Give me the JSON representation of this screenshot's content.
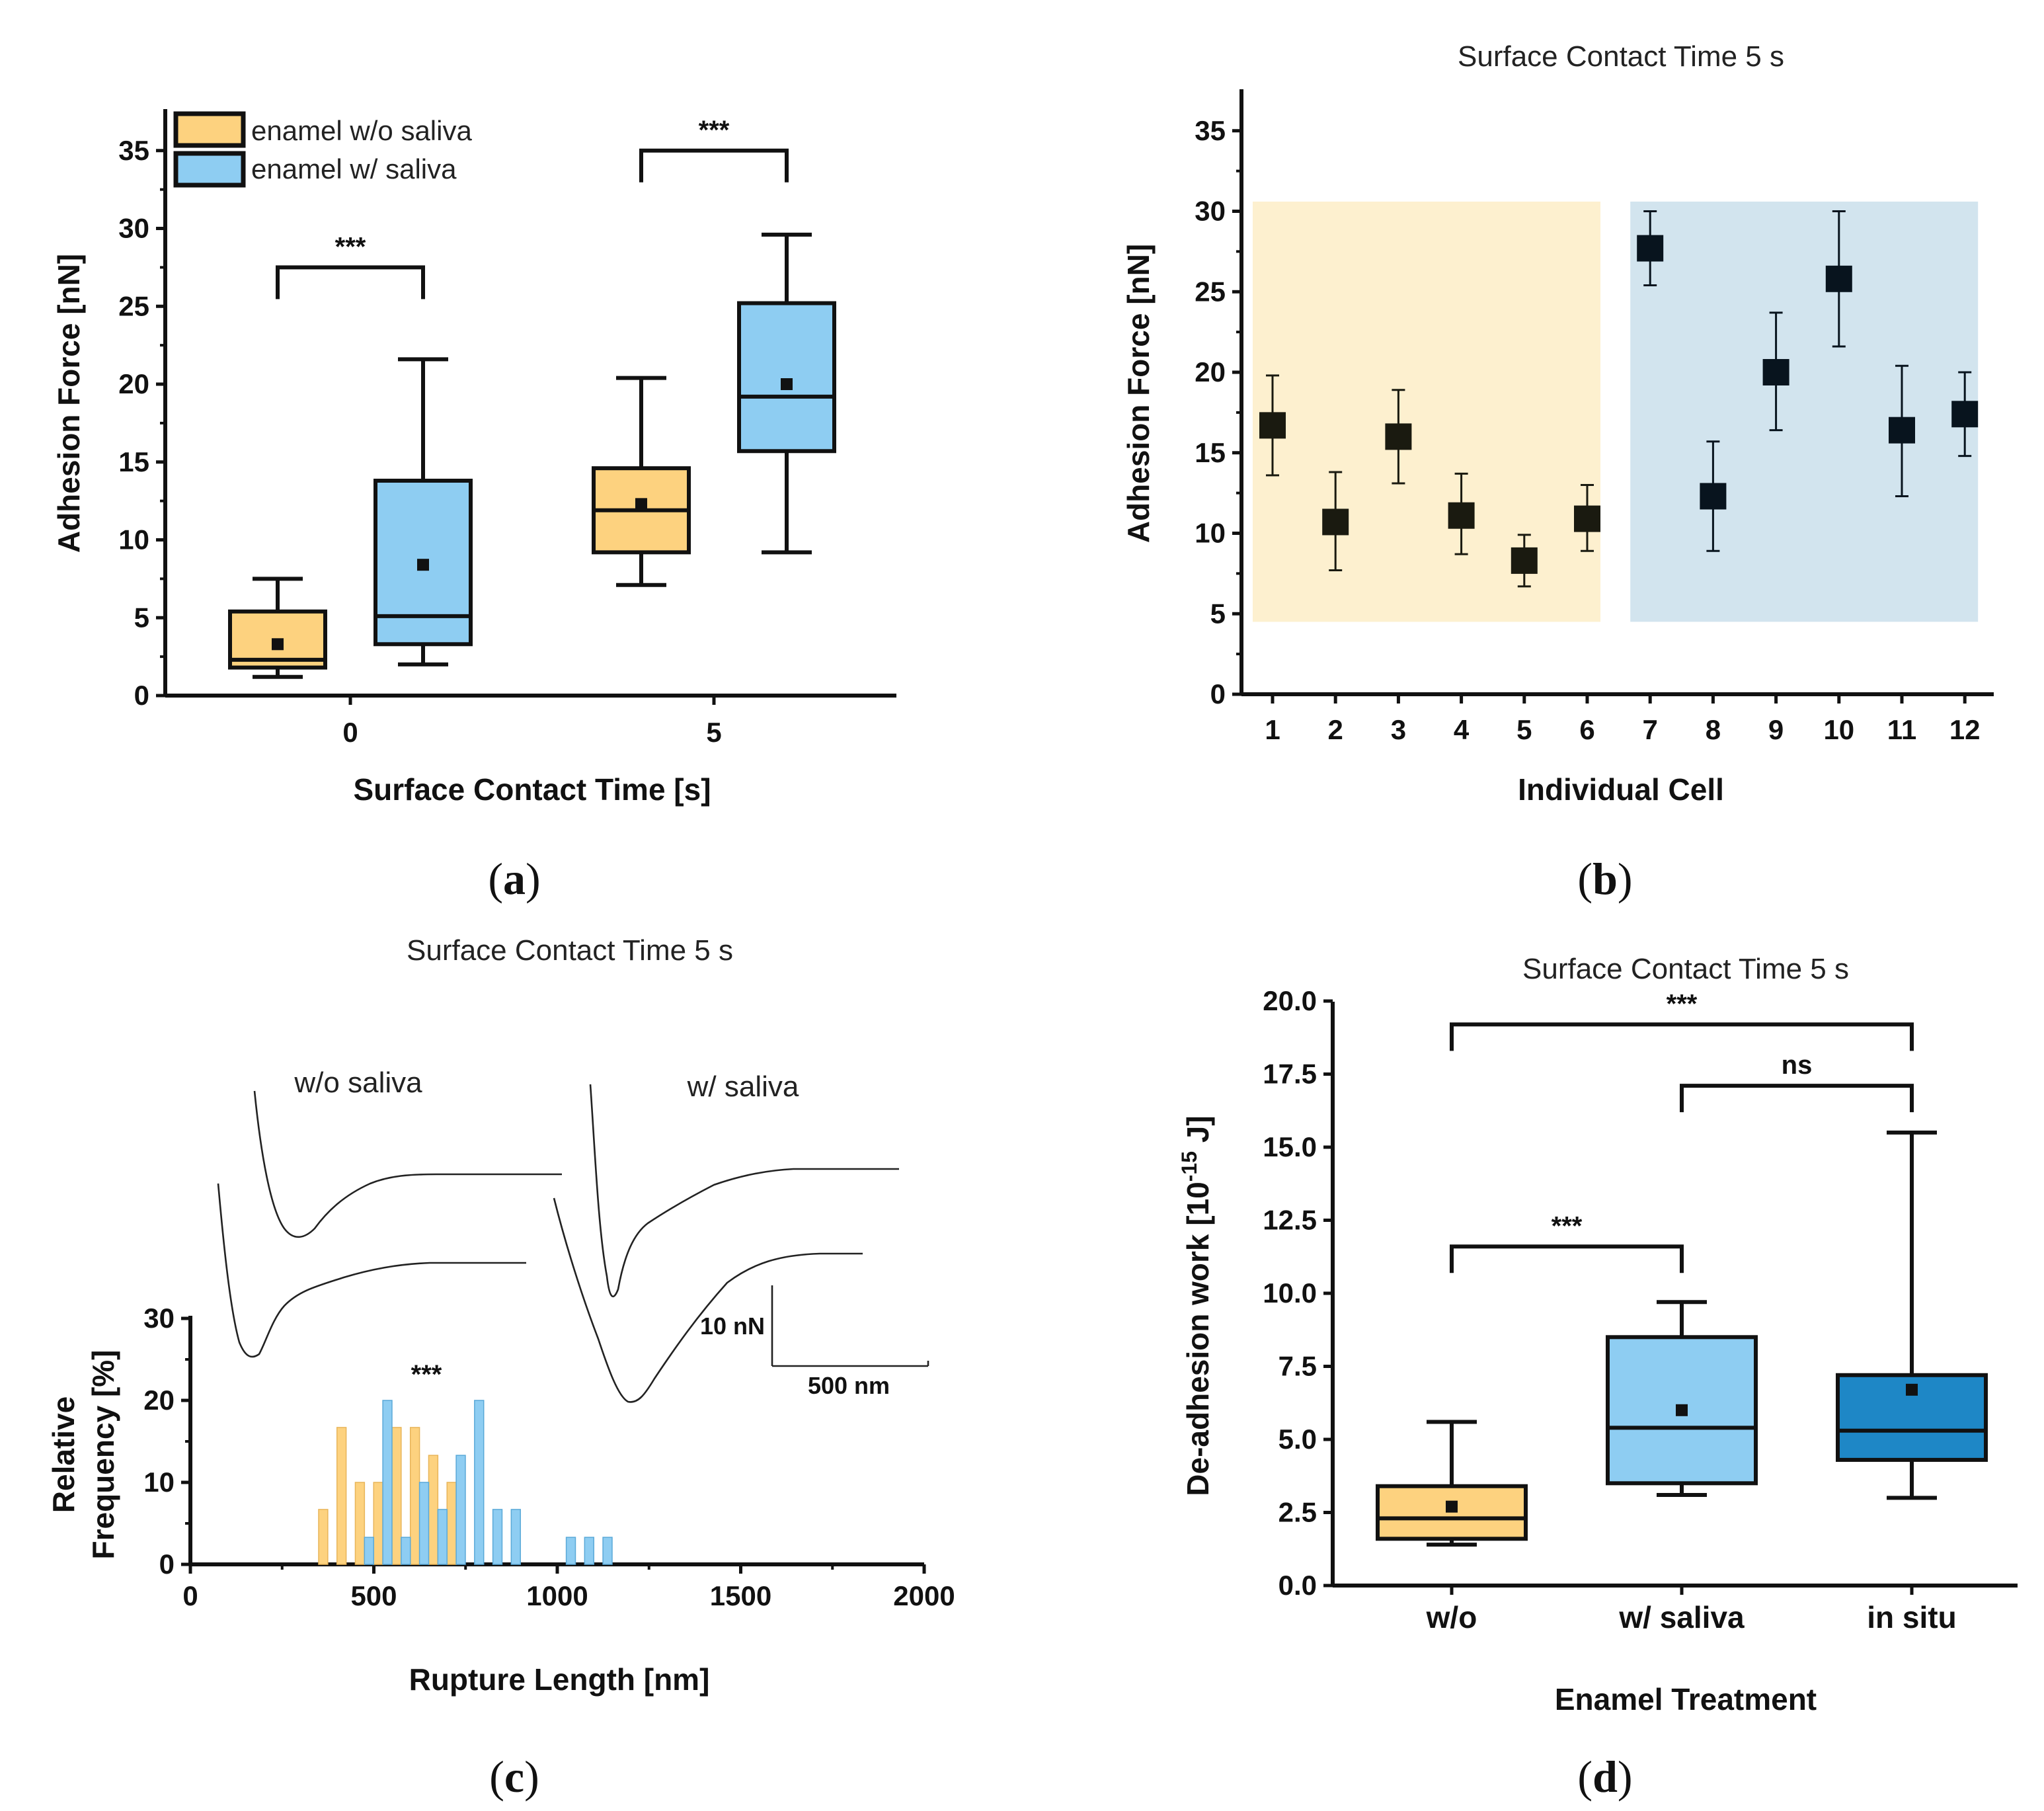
{
  "colors": {
    "orange": "#FDD27F",
    "light_blue": "#8ECDF2",
    "dark_blue": "#1E87C6",
    "panel_b_bg_orange": "#FDF0CF",
    "panel_b_bg_blue": "#D2E4EE",
    "marker_dark": "#1A1A10",
    "marker_blue": "#08141E"
  },
  "panel_labels": {
    "a": {
      "open": "(",
      "letter": "a",
      "close": ")"
    },
    "b": {
      "open": "(",
      "letter": "b",
      "close": ")"
    },
    "c": {
      "open": "(",
      "letter": "c",
      "close": ")"
    },
    "d": {
      "open": "(",
      "letter": "d",
      "close": ")"
    }
  },
  "chart_data": [
    {
      "id": "a",
      "type": "box",
      "title": "",
      "xlabel": "Surface Contact Time [s]",
      "ylabel": "Adhesion Force [nN]",
      "ylim": [
        0,
        37
      ],
      "yticks": [
        0,
        5,
        10,
        15,
        20,
        25,
        30,
        35
      ],
      "categories": [
        "0",
        "5"
      ],
      "legend": [
        {
          "label": "enamel w/o saliva",
          "color": "orange"
        },
        {
          "label": "enamel w/ saliva",
          "color": "light_blue"
        }
      ],
      "series": [
        {
          "name": "enamel w/o saliva",
          "color": "orange",
          "boxes": [
            {
              "category": "0",
              "whisker_low": 1.2,
              "q1": 1.8,
              "median": 2.3,
              "q3": 5.4,
              "whisker_high": 7.5,
              "mean": 3.3
            },
            {
              "category": "5",
              "whisker_low": 7.1,
              "q1": 9.2,
              "median": 11.9,
              "q3": 14.6,
              "whisker_high": 20.4,
              "mean": 12.3
            }
          ]
        },
        {
          "name": "enamel w/ saliva",
          "color": "light_blue",
          "boxes": [
            {
              "category": "0",
              "whisker_low": 2.0,
              "q1": 3.3,
              "median": 5.1,
              "q3": 13.8,
              "whisker_high": 21.6,
              "mean": 8.4
            },
            {
              "category": "5",
              "whisker_low": 9.2,
              "q1": 15.7,
              "median": 19.2,
              "q3": 25.2,
              "whisker_high": 29.6,
              "mean": 20.0
            }
          ]
        }
      ],
      "significance": [
        {
          "between": [
            "0 w/o",
            "0 w/"
          ],
          "label": "***",
          "y": 27.5
        },
        {
          "between": [
            "5 w/o",
            "5 w/"
          ],
          "label": "***",
          "y": 35.0
        }
      ]
    },
    {
      "id": "b",
      "type": "scatter",
      "title": "Surface Contact Time 5 s",
      "xlabel": "Individual Cell",
      "ylabel": "Adhesion Force [nN]",
      "ylim": [
        0,
        38
      ],
      "yticks": [
        0,
        5,
        10,
        15,
        20,
        25,
        30,
        35
      ],
      "xticks": [
        "1",
        "2",
        "3",
        "4",
        "5",
        "6",
        "7",
        "8",
        "9",
        "10",
        "11",
        "12"
      ],
      "groups": [
        {
          "name": "w/o saliva",
          "cells": [
            1,
            6
          ],
          "bg": "panel_b_bg_orange",
          "marker": "marker_dark"
        },
        {
          "name": "w/ saliva",
          "cells": [
            7,
            12
          ],
          "bg": "panel_b_bg_blue",
          "marker": "marker_blue"
        }
      ],
      "bg_range": [
        4.5,
        30.6
      ],
      "points": [
        {
          "cell": 1,
          "mean": 16.7,
          "low": 13.6,
          "high": 19.8
        },
        {
          "cell": 2,
          "mean": 10.7,
          "low": 7.7,
          "high": 13.8
        },
        {
          "cell": 3,
          "mean": 16.0,
          "low": 13.1,
          "high": 18.9
        },
        {
          "cell": 4,
          "mean": 11.1,
          "low": 8.7,
          "high": 13.7
        },
        {
          "cell": 5,
          "mean": 8.3,
          "low": 6.7,
          "high": 9.9
        },
        {
          "cell": 6,
          "mean": 10.9,
          "low": 8.9,
          "high": 13.0
        },
        {
          "cell": 7,
          "mean": 27.7,
          "low": 25.4,
          "high": 30.0
        },
        {
          "cell": 8,
          "mean": 12.3,
          "low": 8.9,
          "high": 15.7
        },
        {
          "cell": 9,
          "mean": 20.0,
          "low": 16.4,
          "high": 23.7
        },
        {
          "cell": 10,
          "mean": 25.8,
          "low": 21.6,
          "high": 30.0
        },
        {
          "cell": 11,
          "mean": 16.4,
          "low": 12.3,
          "high": 20.4
        },
        {
          "cell": 12,
          "mean": 17.4,
          "low": 14.8,
          "high": 20.0
        }
      ]
    },
    {
      "id": "c",
      "type": "bar",
      "title": "Surface Contact Time 5 s",
      "xlabel": "Rupture Length [nm]",
      "ylabel_line1": "Relative",
      "ylabel_line2": "Frequency [%]",
      "xlim": [
        0,
        2000
      ],
      "xticks": [
        0,
        500,
        1000,
        1500,
        2000
      ],
      "ylim": [
        0,
        30
      ],
      "yticks": [
        0,
        10,
        20,
        30
      ],
      "bin_width": 25,
      "significance_label": "***",
      "series": [
        {
          "name": "w/o saliva",
          "color": "orange",
          "x": [
            362,
            412,
            462,
            512,
            562,
            612,
            662,
            712
          ],
          "values": [
            6.7,
            16.7,
            10.0,
            10.0,
            16.7,
            16.7,
            13.3,
            10.0
          ]
        },
        {
          "name": "w/ saliva",
          "color": "light_blue",
          "x": [
            487,
            537,
            587,
            637,
            687,
            737,
            787,
            837,
            887,
            1037,
            1087,
            1137
          ],
          "values": [
            3.3,
            20.0,
            3.3,
            10.0,
            6.7,
            13.3,
            20.0,
            6.7,
            6.7,
            3.3,
            3.3,
            3.3
          ]
        }
      ],
      "inset": {
        "curve_labels": [
          "w/o saliva",
          "w/ saliva"
        ],
        "scale_force": "10 nN",
        "scale_length": "500 nm"
      }
    },
    {
      "id": "d",
      "type": "box",
      "title": "Surface Contact Time 5 s",
      "xlabel": "Enamel Treatment",
      "ylabel_main": "De-adhesion work [10",
      "ylabel_sup": "-15",
      "ylabel_end": " J]",
      "ylim": [
        0,
        20
      ],
      "yticks": [
        "0.0",
        "2.5",
        "5.0",
        "7.5",
        "10.0",
        "12.5",
        "15.0",
        "17.5",
        "20.0"
      ],
      "categories": [
        "w/o",
        "w/ saliva",
        "in situ"
      ],
      "boxes": [
        {
          "category": "w/o",
          "color": "orange",
          "whisker_low": 1.4,
          "q1": 1.6,
          "median": 2.3,
          "q3": 3.4,
          "whisker_high": 5.6,
          "mean": 2.7
        },
        {
          "category": "w/ saliva",
          "color": "light_blue",
          "whisker_low": 3.1,
          "q1": 3.5,
          "median": 5.4,
          "q3": 8.5,
          "whisker_high": 9.7,
          "mean": 6.0
        },
        {
          "category": "in situ",
          "color": "dark_blue",
          "whisker_low": 3.0,
          "q1": 4.3,
          "median": 5.3,
          "q3": 7.2,
          "whisker_high": 15.5,
          "mean": 6.7
        }
      ],
      "significance": [
        {
          "from": 0,
          "to": 2,
          "label": "***",
          "y": 19.2
        },
        {
          "from": 1,
          "to": 2,
          "label": "ns",
          "y": 17.1
        },
        {
          "from": 0,
          "to": 1,
          "label": "***",
          "y": 11.6
        }
      ]
    }
  ]
}
